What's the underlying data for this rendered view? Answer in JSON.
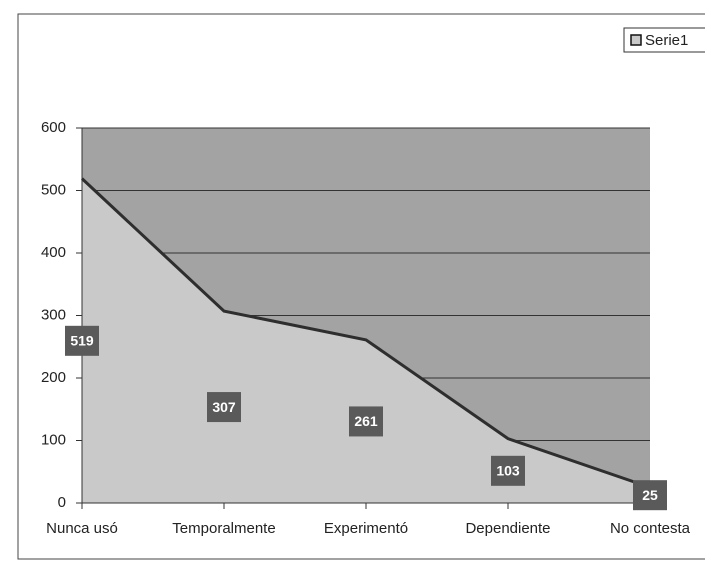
{
  "chart_data": {
    "type": "area",
    "categories": [
      "Nunca usó",
      "Temporalmente",
      "Experimentó",
      "Dependiente",
      "No contesta"
    ],
    "series": [
      {
        "name": "Serie1",
        "color": "#c9c9c9",
        "line_color": "#2e2e2e",
        "values": [
          519,
          307,
          261,
          103,
          25
        ]
      }
    ],
    "ylim": [
      0,
      600
    ],
    "yticks": [
      0,
      100,
      200,
      300,
      400,
      500,
      600
    ],
    "grid": true,
    "legend": "top-right"
  }
}
